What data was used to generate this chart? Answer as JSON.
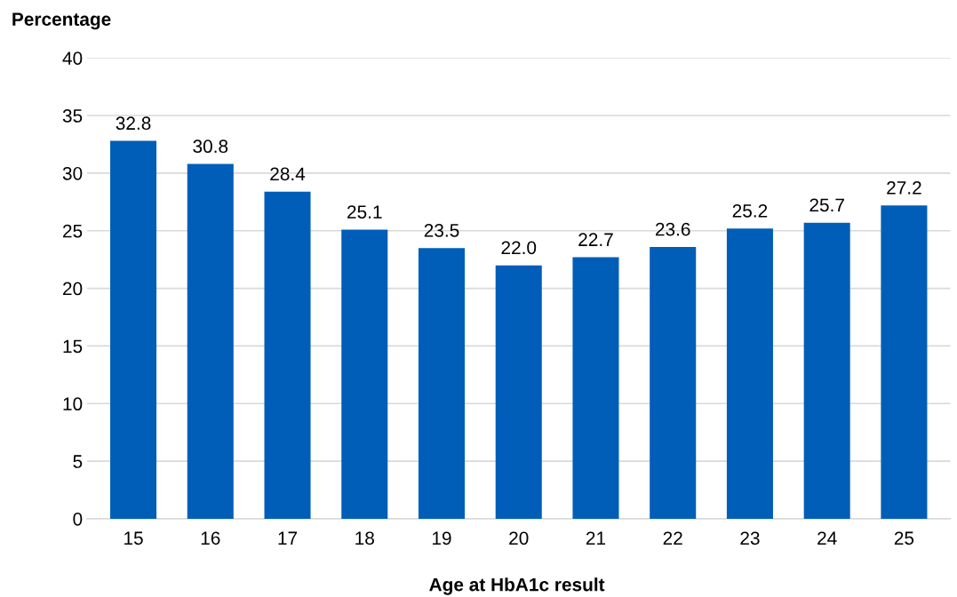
{
  "chart_data": {
    "type": "bar",
    "ylabel": "Percentage",
    "xlabel": "Age at HbA1c result",
    "categories": [
      "15",
      "16",
      "17",
      "18",
      "19",
      "20",
      "21",
      "22",
      "23",
      "24",
      "25"
    ],
    "values": [
      32.8,
      30.8,
      28.4,
      25.1,
      23.5,
      22.0,
      22.7,
      23.6,
      25.2,
      25.7,
      27.2
    ],
    "value_labels": [
      "32.8",
      "30.8",
      "28.4",
      "25.1",
      "23.5",
      "22.0",
      "22.7",
      "23.6",
      "25.2",
      "25.7",
      "27.2"
    ],
    "color": "#005eb8",
    "ylim": [
      0,
      40
    ],
    "yticks": [
      0,
      5,
      10,
      15,
      20,
      25,
      30,
      35,
      40
    ],
    "grid": "y"
  }
}
